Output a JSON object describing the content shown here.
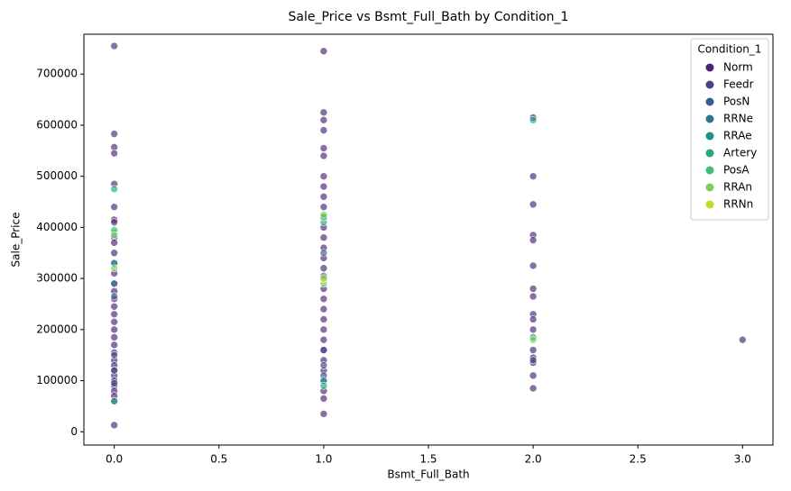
{
  "chart_data": {
    "type": "scatter",
    "title": "Sale_Price vs Bsmt_Full_Bath by Condition_1",
    "x_label": "Bsmt_Full_Bath",
    "y_label": "Sale_Price",
    "legend_title": "Condition_1",
    "legend_position": "upper right",
    "xlim": [
      -0.145,
      3.145
    ],
    "ylim": [
      -26000,
      778000
    ],
    "xticks": [
      {
        "value": 0,
        "label": "0.0"
      },
      {
        "value": 0.5,
        "label": "0.5"
      },
      {
        "value": 1,
        "label": "1.0"
      },
      {
        "value": 1.5,
        "label": "1.5"
      },
      {
        "value": 2,
        "label": "2.0"
      },
      {
        "value": 2.5,
        "label": "2.5"
      },
      {
        "value": 3,
        "label": "3.0"
      }
    ],
    "yticks": [
      0,
      100000,
      200000,
      300000,
      400000,
      500000,
      600000,
      700000
    ],
    "series": [
      {
        "name": "Norm",
        "color": "#482475",
        "x": [
          0,
          0,
          0,
          0,
          0,
          0,
          0,
          0,
          0,
          0,
          0,
          0,
          0,
          0,
          0,
          0,
          0,
          0,
          0,
          0,
          0,
          0,
          0,
          0,
          0,
          0,
          0,
          0,
          0,
          0,
          0,
          0,
          0,
          1,
          1,
          1,
          1,
          1,
          1,
          1,
          1,
          1,
          1,
          1,
          1,
          1,
          1,
          1,
          1,
          1,
          1,
          1,
          1,
          1,
          1,
          1,
          1,
          1,
          1,
          1,
          1,
          1,
          1,
          2,
          2,
          2,
          2,
          2,
          2,
          2,
          2,
          2,
          2,
          2,
          2,
          2,
          2,
          2,
          2,
          3
        ],
        "values": [
          755000,
          583000,
          557000,
          545000,
          485000,
          440000,
          415000,
          410000,
          380000,
          370000,
          350000,
          330000,
          310000,
          290000,
          275000,
          260000,
          245000,
          230000,
          215000,
          200000,
          185000,
          170000,
          155000,
          140000,
          130000,
          120000,
          110000,
          100000,
          90000,
          80000,
          70000,
          60000,
          13000,
          745000,
          625000,
          610000,
          590000,
          555000,
          540000,
          500000,
          480000,
          460000,
          440000,
          420000,
          400000,
          380000,
          360000,
          340000,
          320000,
          300000,
          280000,
          260000,
          240000,
          220000,
          200000,
          180000,
          160000,
          140000,
          120000,
          100000,
          80000,
          65000,
          35000,
          615000,
          500000,
          445000,
          385000,
          375000,
          325000,
          280000,
          265000,
          230000,
          220000,
          200000,
          160000,
          145000,
          135000,
          110000,
          85000,
          180000
        ]
      },
      {
        "name": "Feedr",
        "color": "#414487",
        "x": [
          0,
          0,
          0,
          1,
          1,
          1,
          2
        ],
        "values": [
          150000,
          120000,
          95000,
          130000,
          160000,
          110000,
          140000
        ]
      },
      {
        "name": "PosN",
        "color": "#355f8d",
        "x": [
          0,
          1
        ],
        "values": [
          265000,
          350000
        ]
      },
      {
        "name": "RRNe",
        "color": "#2a788e",
        "x": [
          0,
          1
        ],
        "values": [
          290000,
          305000
        ]
      },
      {
        "name": "RRAe",
        "color": "#21918c",
        "x": [
          0,
          1,
          2
        ],
        "values": [
          330000,
          100000,
          185000
        ]
      },
      {
        "name": "Artery",
        "color": "#22a884",
        "x": [
          0,
          0,
          0,
          1,
          1,
          2
        ],
        "values": [
          475000,
          390000,
          60000,
          410000,
          90000,
          610000
        ]
      },
      {
        "name": "PosA",
        "color": "#44bf70",
        "x": [
          0,
          1
        ],
        "values": [
          395000,
          420000
        ]
      },
      {
        "name": "RRAn",
        "color": "#7ad151",
        "x": [
          0,
          0,
          1,
          1,
          2
        ],
        "values": [
          385000,
          320000,
          425000,
          290000,
          180000
        ]
      },
      {
        "name": "RRNn",
        "color": "#bddf26",
        "x": [
          1
        ],
        "values": [
          300000
        ]
      }
    ]
  }
}
